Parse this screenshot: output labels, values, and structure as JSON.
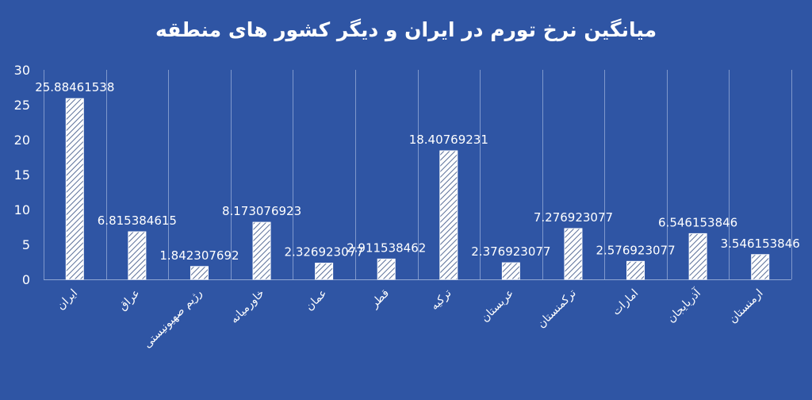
{
  "chart_data": {
    "type": "bar",
    "title": "میانگین نرخ تورم در ایران و دیگر کشور های منطقه",
    "xlabel": "",
    "ylabel": "",
    "ylim": [
      0,
      30
    ],
    "yticks": [
      0,
      5,
      10,
      15,
      20,
      25,
      30
    ],
    "grid": true,
    "legend": "none",
    "bar_fill": "hatched-white",
    "categories": [
      "ایران",
      "عراق",
      "رژیم صهیونیستی",
      "خاورمیانه",
      "عمان",
      "قطر",
      "ترکیه",
      "عربستان",
      "ترکمنستان",
      "امارات",
      "آذربایجان",
      "ارمنستان"
    ],
    "values": [
      25.88461538,
      6.815384615,
      1.842307692,
      8.173076923,
      2.326923077,
      2.911538462,
      18.40769231,
      2.376923077,
      7.276923077,
      2.576923077,
      6.546153846,
      3.546153846
    ],
    "data_labels": [
      "25.88461538",
      "6.815384615",
      "1.842307692",
      "8.173076923",
      "2.326923077",
      "2.911538462",
      "18.40769231",
      "2.376923077",
      "7.276923077",
      "2.576923077",
      "6.546153846",
      "3.546153846"
    ]
  },
  "colors": {
    "background": "#2f55a4",
    "text": "#ffffff",
    "gridline": "#7f98cc"
  }
}
